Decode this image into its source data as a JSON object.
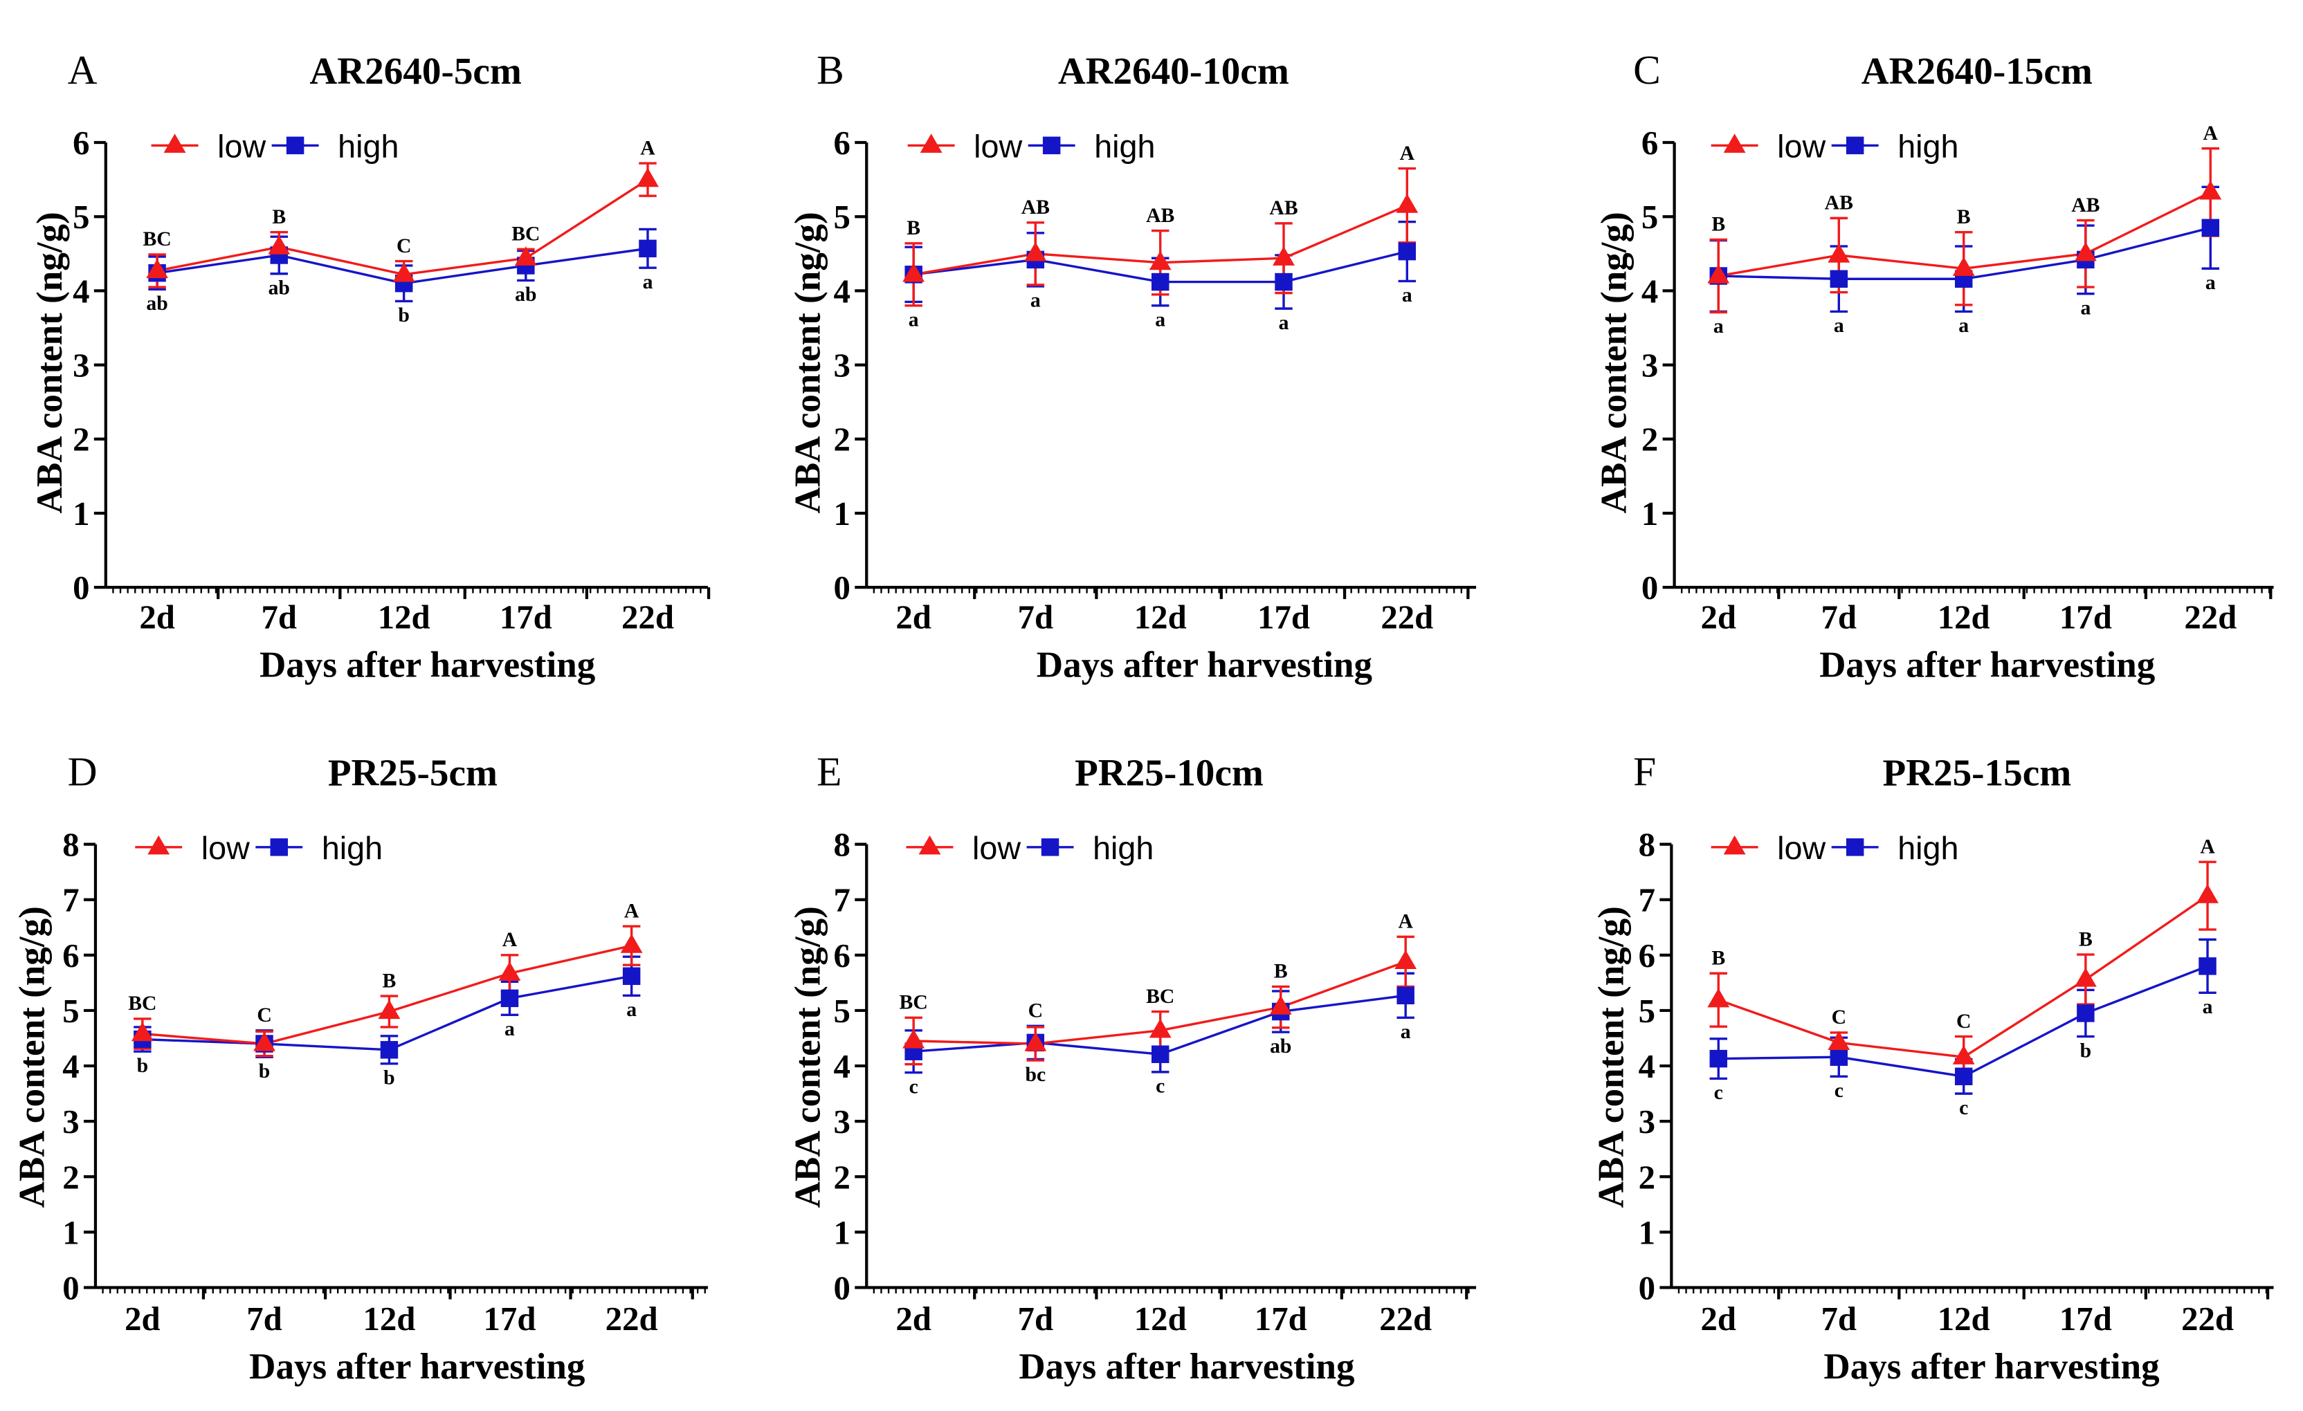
{
  "chart_data": [
    {
      "panel": "A",
      "type": "line",
      "title": "AR2640-5cm",
      "xlabel": "Days after harvesting",
      "ylabel": "ABA content (ng/g)",
      "categories": [
        "2d",
        "7d",
        "12d",
        "17d",
        "22d"
      ],
      "ylim": [
        0,
        6
      ],
      "yticks": [
        0,
        1,
        2,
        3,
        4,
        5,
        6
      ],
      "grid": false,
      "legend_position": "top-left",
      "series": [
        {
          "name": "low",
          "marker_icon": "triangle-icon",
          "color": "#f21b1b",
          "values": [
            4.27,
            4.59,
            4.22,
            4.44,
            5.5
          ],
          "errors": [
            0.22,
            0.2,
            0.18,
            0.12,
            0.22
          ],
          "letters": [
            "BC",
            "B",
            "C",
            "BC",
            "A"
          ]
        },
        {
          "name": "high",
          "marker_icon": "square-icon",
          "color": "#1515c8",
          "values": [
            4.24,
            4.48,
            4.1,
            4.34,
            4.57
          ],
          "errors": [
            0.22,
            0.25,
            0.24,
            0.2,
            0.26
          ],
          "letters": [
            "ab",
            "ab",
            "b",
            "ab",
            "a"
          ]
        }
      ]
    },
    {
      "panel": "B",
      "type": "line",
      "title": "AR2640-10cm",
      "xlabel": "Days after harvesting",
      "ylabel": "ABA content (ng/g)",
      "categories": [
        "2d",
        "7d",
        "12d",
        "17d",
        "22d"
      ],
      "ylim": [
        0,
        6
      ],
      "yticks": [
        0,
        1,
        2,
        3,
        4,
        5,
        6
      ],
      "grid": false,
      "legend_position": "top-left",
      "series": [
        {
          "name": "low",
          "marker_icon": "triangle-icon",
          "color": "#f21b1b",
          "values": [
            4.22,
            4.5,
            4.38,
            4.44,
            5.15
          ],
          "errors": [
            0.42,
            0.42,
            0.43,
            0.47,
            0.5
          ],
          "letters": [
            "B",
            "AB",
            "AB",
            "AB",
            "A"
          ]
        },
        {
          "name": "high",
          "marker_icon": "square-icon",
          "color": "#1515c8",
          "values": [
            4.22,
            4.42,
            4.12,
            4.12,
            4.53
          ],
          "errors": [
            0.37,
            0.36,
            0.32,
            0.36,
            0.4
          ],
          "letters": [
            "a",
            "a",
            "a",
            "a",
            "a"
          ]
        }
      ]
    },
    {
      "panel": "C",
      "type": "line",
      "title": "AR2640-15cm",
      "xlabel": "Days after harvesting",
      "ylabel": "ABA content (ng/g)",
      "categories": [
        "2d",
        "7d",
        "12d",
        "17d",
        "22d"
      ],
      "ylim": [
        0,
        6
      ],
      "yticks": [
        0,
        1,
        2,
        3,
        4,
        5,
        6
      ],
      "grid": false,
      "legend_position": "top-left",
      "series": [
        {
          "name": "low",
          "marker_icon": "triangle-icon",
          "color": "#f21b1b",
          "values": [
            4.2,
            4.48,
            4.3,
            4.5,
            5.33
          ],
          "errors": [
            0.49,
            0.5,
            0.49,
            0.45,
            0.59
          ],
          "letters": [
            "B",
            "AB",
            "B",
            "AB",
            "A"
          ]
        },
        {
          "name": "high",
          "marker_icon": "square-icon",
          "color": "#1515c8",
          "values": [
            4.2,
            4.16,
            4.16,
            4.42,
            4.85
          ],
          "errors": [
            0.48,
            0.44,
            0.44,
            0.46,
            0.55
          ],
          "letters": [
            "a",
            "a",
            "a",
            "a",
            "a"
          ]
        }
      ]
    },
    {
      "panel": "D",
      "type": "line",
      "title": "PR25-5cm",
      "xlabel": "Days after harvesting",
      "ylabel": "ABA content (ng/g)",
      "categories": [
        "2d",
        "7d",
        "12d",
        "17d",
        "22d"
      ],
      "ylim": [
        0,
        8
      ],
      "yticks": [
        0,
        1,
        2,
        3,
        4,
        5,
        6,
        7,
        8
      ],
      "grid": false,
      "legend_position": "top-left",
      "series": [
        {
          "name": "low",
          "marker_icon": "triangle-icon",
          "color": "#f21b1b",
          "values": [
            4.58,
            4.4,
            4.98,
            5.67,
            6.17
          ],
          "errors": [
            0.27,
            0.22,
            0.28,
            0.33,
            0.35
          ],
          "letters": [
            "BC",
            "C",
            "B",
            "A",
            "A"
          ]
        },
        {
          "name": "high",
          "marker_icon": "square-icon",
          "color": "#1515c8",
          "values": [
            4.48,
            4.4,
            4.29,
            5.22,
            5.62
          ],
          "errors": [
            0.22,
            0.24,
            0.25,
            0.3,
            0.35
          ],
          "letters": [
            "b",
            "b",
            "b",
            "a",
            "a"
          ]
        }
      ]
    },
    {
      "panel": "E",
      "type": "line",
      "title": "PR25-10cm",
      "xlabel": "Days after harvesting",
      "ylabel": "ABA content (ng/g)",
      "categories": [
        "2d",
        "7d",
        "12d",
        "17d",
        "22d"
      ],
      "ylim": [
        0,
        8
      ],
      "yticks": [
        0,
        1,
        2,
        3,
        4,
        5,
        6,
        7,
        8
      ],
      "grid": false,
      "legend_position": "top-left",
      "series": [
        {
          "name": "low",
          "marker_icon": "triangle-icon",
          "color": "#f21b1b",
          "values": [
            4.45,
            4.4,
            4.64,
            5.06,
            5.88
          ],
          "errors": [
            0.42,
            0.3,
            0.34,
            0.37,
            0.45
          ],
          "letters": [
            "BC",
            "C",
            "BC",
            "B",
            "A"
          ]
        },
        {
          "name": "high",
          "marker_icon": "square-icon",
          "color": "#1515c8",
          "values": [
            4.26,
            4.42,
            4.21,
            4.98,
            5.27
          ],
          "errors": [
            0.38,
            0.3,
            0.32,
            0.37,
            0.4
          ],
          "letters": [
            "c",
            "bc",
            "c",
            "ab",
            "a"
          ]
        }
      ]
    },
    {
      "panel": "F",
      "type": "line",
      "title": "PR25-15cm",
      "xlabel": "Days after harvesting",
      "ylabel": "ABA content (ng/g)",
      "categories": [
        "2d",
        "7d",
        "12d",
        "17d",
        "22d"
      ],
      "ylim": [
        0,
        8
      ],
      "yticks": [
        0,
        1,
        2,
        3,
        4,
        5,
        6,
        7,
        8
      ],
      "grid": false,
      "legend_position": "top-left",
      "series": [
        {
          "name": "low",
          "marker_icon": "triangle-icon",
          "color": "#f21b1b",
          "values": [
            5.19,
            4.42,
            4.16,
            5.56,
            7.07
          ],
          "errors": [
            0.48,
            0.18,
            0.37,
            0.45,
            0.61
          ],
          "letters": [
            "B",
            "C",
            "C",
            "B",
            "A"
          ]
        },
        {
          "name": "high",
          "marker_icon": "square-icon",
          "color": "#1515c8",
          "values": [
            4.13,
            4.16,
            3.81,
            4.95,
            5.8
          ],
          "errors": [
            0.36,
            0.35,
            0.31,
            0.42,
            0.48
          ],
          "letters": [
            "c",
            "c",
            "c",
            "b",
            "a"
          ]
        }
      ]
    }
  ]
}
